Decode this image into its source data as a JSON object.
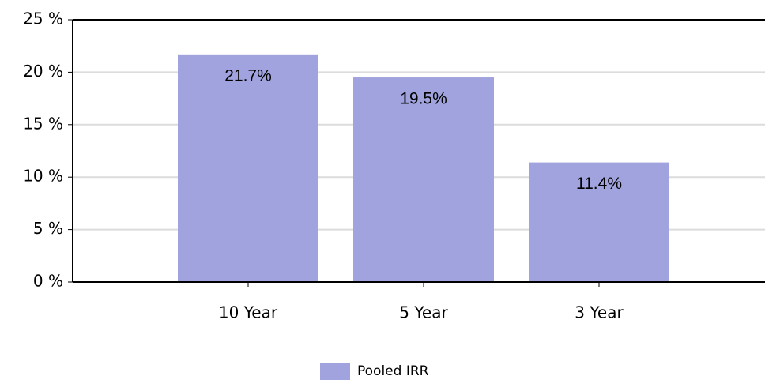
{
  "chart_data": {
    "type": "bar",
    "categories": [
      "10 Year",
      "5 Year",
      "3 Year"
    ],
    "series": [
      {
        "name": "Pooled IRR",
        "color": "#a0a3dd",
        "values": [
          21.7,
          19.5,
          11.4
        ],
        "value_labels": [
          "21.7%",
          "19.5%",
          "11.4%"
        ]
      }
    ],
    "ylim": [
      0,
      25
    ],
    "yticks": [
      {
        "value": 0,
        "label": "0 %"
      },
      {
        "value": 5,
        "label": "5 %"
      },
      {
        "value": 10,
        "label": "10 %"
      },
      {
        "value": 15,
        "label": "15 %"
      },
      {
        "value": 20,
        "label": "20 %"
      },
      {
        "value": 25,
        "label": "25 %"
      }
    ],
    "grid": true
  }
}
